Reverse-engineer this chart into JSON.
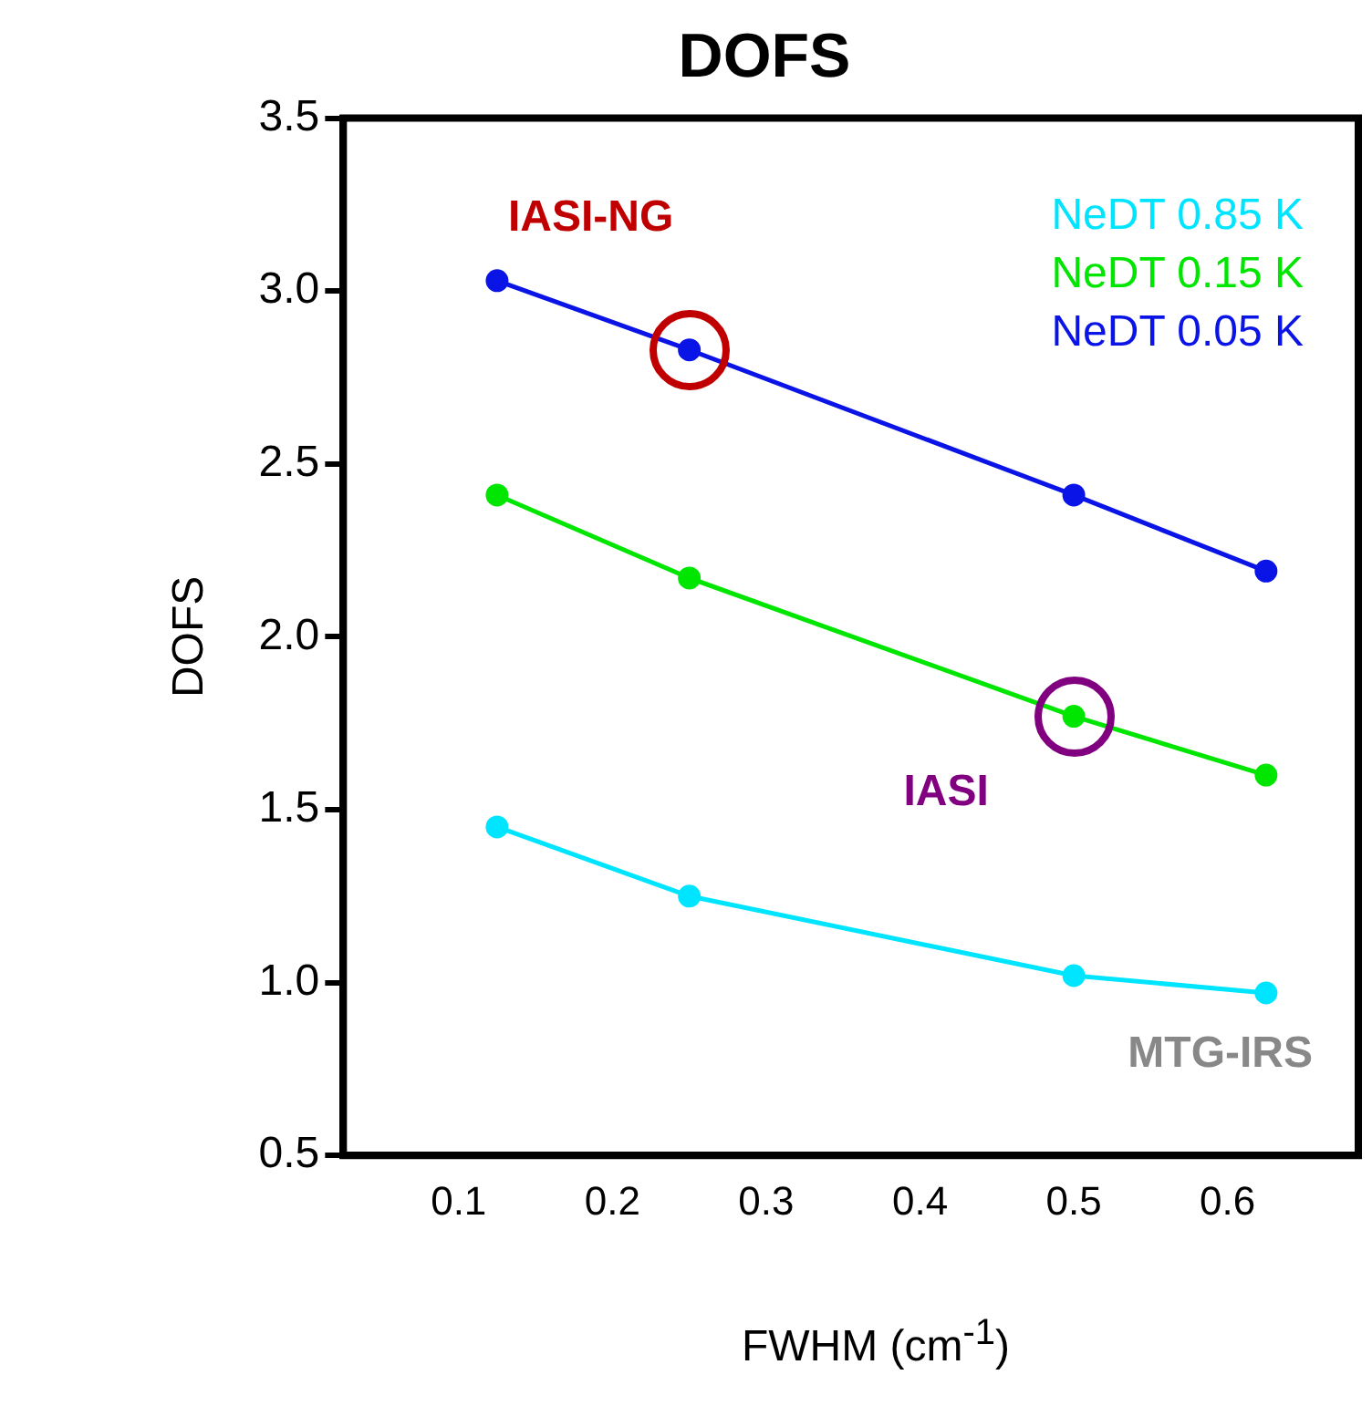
{
  "chart_data": {
    "type": "line",
    "title": "DOFS",
    "xlabel": "FWHM (cm$^{-1}$)",
    "ylabel": "DOFS",
    "x": [
      0.125,
      0.25,
      0.5,
      0.625
    ],
    "series": [
      {
        "name": "NeDT 0.85 K",
        "color": "#00e5ff",
        "values": [
          1.45,
          1.25,
          1.02,
          0.97
        ]
      },
      {
        "name": "NeDT 0.15 K",
        "color": "#00e600",
        "values": [
          2.41,
          2.17,
          1.77,
          1.6
        ]
      },
      {
        "name": "NeDT 0.05 K",
        "color": "#0a14e6",
        "values": [
          3.03,
          2.83,
          2.41,
          2.19
        ]
      }
    ],
    "xlim": [
      0.025,
      0.685
    ],
    "xticks": [
      0.1,
      0.2,
      0.3,
      0.4,
      0.5,
      0.6
    ],
    "ylim": [
      0.5,
      3.5
    ],
    "yticks": [
      {
        "value": 0.5,
        "label": "0.5"
      },
      {
        "value": 1,
        "label": "1.0"
      },
      {
        "value": 1.5,
        "label": "1.5"
      },
      {
        "value": 2,
        "label": "2.0"
      },
      {
        "value": 2.5,
        "label": "2.5"
      },
      {
        "value": 3,
        "label": "3.0"
      },
      {
        "value": 3.5,
        "label": "3.5"
      }
    ],
    "grid": false,
    "legend": "top right",
    "marker": "circle",
    "line_style": "solid",
    "annotations": [
      {
        "text": "IASI-NG",
        "x": 0.25,
        "y": 2.83
      },
      {
        "text": "IASI",
        "x": 0.5,
        "y": 1.77
      },
      "MTG-IRS"
    ]
  }
}
